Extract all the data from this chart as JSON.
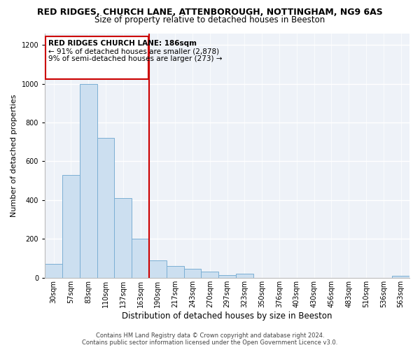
{
  "title": "RED RIDGES, CHURCH LANE, ATTENBOROUGH, NOTTINGHAM, NG9 6AS",
  "subtitle": "Size of property relative to detached houses in Beeston",
  "xlabel": "Distribution of detached houses by size in Beeston",
  "ylabel": "Number of detached properties",
  "bar_labels": [
    "30sqm",
    "57sqm",
    "83sqm",
    "110sqm",
    "137sqm",
    "163sqm",
    "190sqm",
    "217sqm",
    "243sqm",
    "270sqm",
    "297sqm",
    "323sqm",
    "350sqm",
    "376sqm",
    "403sqm",
    "430sqm",
    "456sqm",
    "483sqm",
    "510sqm",
    "536sqm",
    "563sqm"
  ],
  "bar_values": [
    70,
    530,
    1000,
    720,
    410,
    200,
    90,
    60,
    45,
    30,
    15,
    20,
    0,
    0,
    0,
    0,
    0,
    0,
    0,
    0,
    10
  ],
  "bar_color": "#ccdff0",
  "bar_edge_color": "#7bafd4",
  "vline_x_index": 6,
  "vline_color": "#cc0000",
  "annotation_title": "RED RIDGES CHURCH LANE: 186sqm",
  "annotation_line1": "← 91% of detached houses are smaller (2,878)",
  "annotation_line2": "9% of semi-detached houses are larger (273) →",
  "ylim": [
    0,
    1260
  ],
  "yticks": [
    0,
    200,
    400,
    600,
    800,
    1000,
    1200
  ],
  "footer_line1": "Contains HM Land Registry data © Crown copyright and database right 2024.",
  "footer_line2": "Contains public sector information licensed under the Open Government Licence v3.0.",
  "bg_color": "#eef2f8",
  "grid_color": "#ffffff",
  "title_fontsize": 9,
  "subtitle_fontsize": 8.5,
  "ylabel_fontsize": 8,
  "xlabel_fontsize": 8.5,
  "tick_fontsize": 7,
  "ann_fontsize": 7.5,
  "footer_fontsize": 6
}
